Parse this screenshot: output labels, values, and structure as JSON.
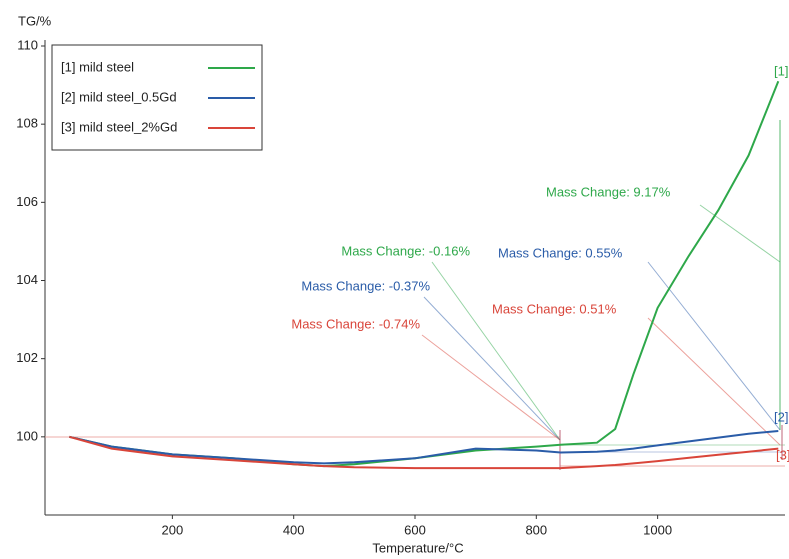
{
  "chart_data": {
    "type": "line",
    "xlabel": "Temperature/°C",
    "ylabel": "TG/%",
    "x": [
      30,
      100,
      200,
      300,
      400,
      450,
      500,
      600,
      700,
      800,
      840,
      900,
      930,
      960,
      1000,
      1050,
      1100,
      1150,
      1199
    ],
    "series": [
      {
        "name": "[1] mild steel",
        "color": "#2ea84a",
        "values": [
          100,
          99.75,
          99.55,
          99.45,
          99.3,
          99.25,
          99.3,
          99.45,
          99.65,
          99.75,
          99.8,
          99.85,
          100.2,
          101.6,
          103.3,
          104.6,
          105.8,
          107.2,
          109.1
        ]
      },
      {
        "name": "[2] mild steel_0.5Gd",
        "color": "#2a5ca8",
        "values": [
          100,
          99.75,
          99.55,
          99.45,
          99.35,
          99.32,
          99.35,
          99.45,
          99.7,
          99.65,
          99.6,
          99.62,
          99.65,
          99.7,
          99.78,
          99.88,
          99.98,
          100.08,
          100.15
        ]
      },
      {
        "name": "[3] mild steel_2%Gd",
        "color": "#d9453a",
        "values": [
          100,
          99.7,
          99.5,
          99.4,
          99.3,
          99.25,
          99.22,
          99.2,
          99.2,
          99.2,
          99.2,
          99.25,
          99.28,
          99.32,
          99.38,
          99.46,
          99.54,
          99.62,
          99.7
        ]
      }
    ],
    "annotations": [
      {
        "text": "Mass Change: 9.17%",
        "color": "#2ea84a"
      },
      {
        "text": "Mass Change: -0.16%",
        "color": "#2ea84a"
      },
      {
        "text": "Mass Change: -0.37%",
        "color": "#2a5ca8"
      },
      {
        "text": "Mass Change: -0.74%",
        "color": "#d9453a"
      },
      {
        "text": "Mass Change: 0.55%",
        "color": "#2a5ca8"
      },
      {
        "text": "Mass Change: 0.51%",
        "color": "#d9453a"
      },
      {
        "text": "[1]",
        "color": "#2ea84a"
      },
      {
        "text": "[2]",
        "color": "#2a5ca8"
      },
      {
        "text": "[3]",
        "color": "#d9453a"
      }
    ],
    "xlim": [
      -10,
      1210
    ],
    "ylim": [
      98,
      110
    ],
    "xticks": [
      200,
      400,
      600,
      800,
      1000
    ],
    "yticks": [
      100,
      102,
      104,
      106,
      108,
      110
    ],
    "legend": "upper-left"
  }
}
